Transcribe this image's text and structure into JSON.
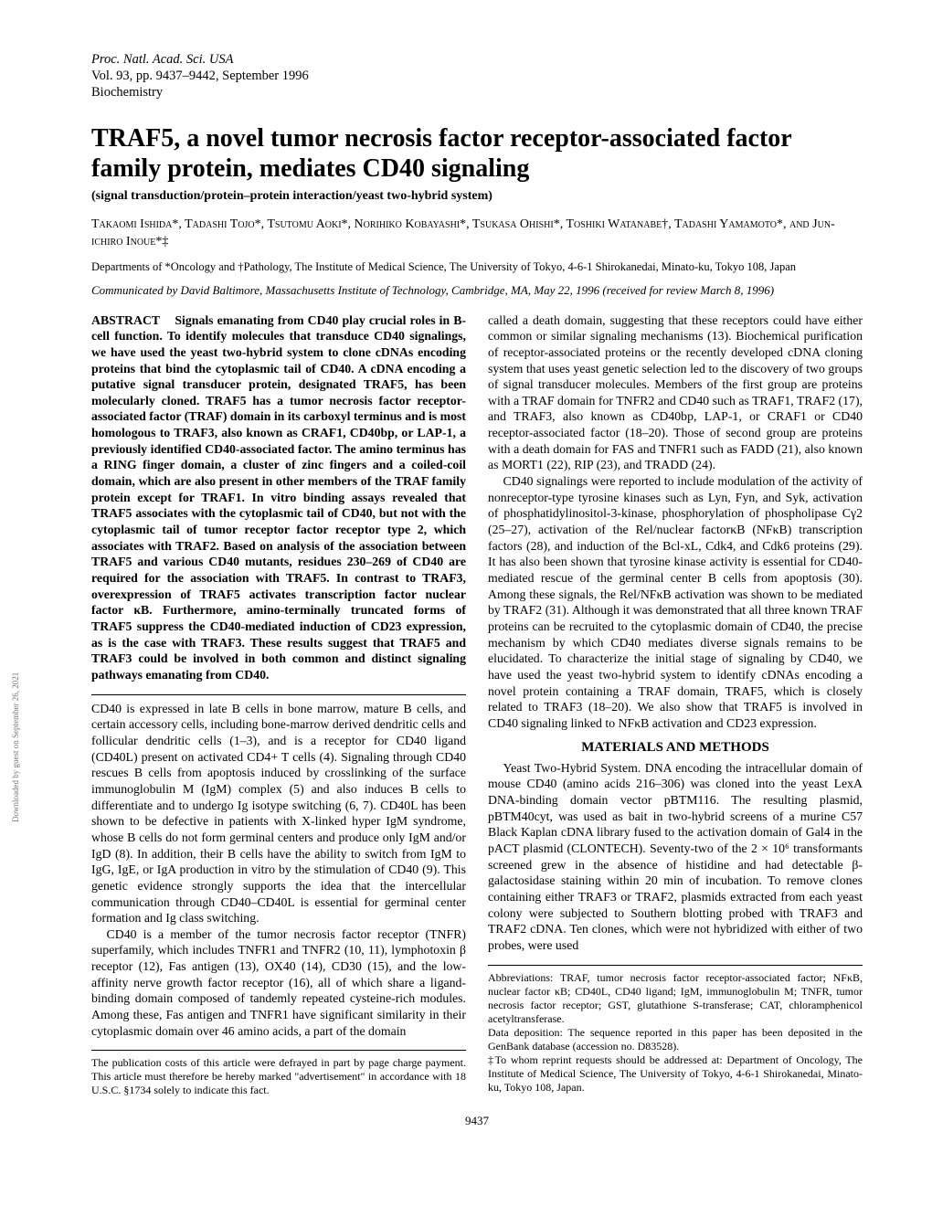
{
  "header": {
    "line1": "Proc. Natl. Acad. Sci. USA",
    "line2": "Vol. 93, pp. 9437–9442, September 1996",
    "line3": "Biochemistry"
  },
  "title": "TRAF5, a novel tumor necrosis factor receptor-associated factor family protein, mediates CD40 signaling",
  "subtitle": "(signal transduction/protein–protein interaction/yeast two-hybrid system)",
  "authors": "Takaomi Ishida*, Tadashi Tojo*, Tsutomu Aoki*, Norihiko Kobayashi*, Tsukasa Ohishi*, Toshiki Watanabe†, Tadashi Yamamoto*, and Jun-ichiro Inoue*‡",
  "affiliations": "Departments of *Oncology and †Pathology, The Institute of Medical Science, The University of Tokyo, 4-6-1 Shirokanedai, Minato-ku, Tokyo 108, Japan",
  "communicated": "Communicated by David Baltimore, Massachusetts Institute of Technology, Cambridge, MA, May 22, 1996 (received for review March 8, 1996)",
  "abstract_label": "ABSTRACT",
  "abstract": "Signals emanating from CD40 play crucial roles in B-cell function. To identify molecules that transduce CD40 signalings, we have used the yeast two-hybrid system to clone cDNAs encoding proteins that bind the cytoplasmic tail of CD40. A cDNA encoding a putative signal transducer protein, designated TRAF5, has been molecularly cloned. TRAF5 has a tumor necrosis factor receptor-associated factor (TRAF) domain in its carboxyl terminus and is most homologous to TRAF3, also known as CRAF1, CD40bp, or LAP-1, a previously identified CD40-associated factor. The amino terminus has a RING finger domain, a cluster of zinc fingers and a coiled-coil domain, which are also present in other members of the TRAF family protein except for TRAF1. In vitro binding assays revealed that TRAF5 associates with the cytoplasmic tail of CD40, but not with the cytoplasmic tail of tumor receptor factor receptor type 2, which associates with TRAF2. Based on analysis of the association between TRAF5 and various CD40 mutants, residues 230–269 of CD40 are required for the association with TRAF5. In contrast to TRAF3, overexpression of TRAF5 activates transcription factor nuclear factor κB. Furthermore, amino-terminally truncated forms of TRAF5 suppress the CD40-mediated induction of CD23 expression, as is the case with TRAF3. These results suggest that TRAF5 and TRAF3 could be involved in both common and distinct signaling pathways emanating from CD40.",
  "left": {
    "p1": "CD40 is expressed in late B cells in bone marrow, mature B cells, and certain accessory cells, including bone-marrow derived dendritic cells and follicular dendritic cells (1–3), and is a receptor for CD40 ligand (CD40L) present on activated CD4+ T cells (4). Signaling through CD40 rescues B cells from apoptosis induced by crosslinking of the surface immunoglobulin M (IgM) complex (5) and also induces B cells to differentiate and to undergo Ig isotype switching (6, 7). CD40L has been shown to be defective in patients with X-linked hyper IgM syndrome, whose B cells do not form germinal centers and produce only IgM and/or IgD (8). In addition, their B cells have the ability to switch from IgM to IgG, IgE, or IgA production in vitro by the stimulation of CD40 (9). This genetic evidence strongly supports the idea that the intercellular communication through CD40–CD40L is essential for germinal center formation and Ig class switching.",
    "p2": "CD40 is a member of the tumor necrosis factor receptor (TNFR) superfamily, which includes TNFR1 and TNFR2 (10, 11), lymphotoxin β receptor (12), Fas antigen (13), OX40 (14), CD30 (15), and the low-affinity nerve growth factor receptor (16), all of which share a ligand-binding domain composed of tandemly repeated cysteine-rich modules. Among these, Fas antigen and TNFR1 have significant similarity in their cytoplasmic domain over 46 amino acids, a part of the domain",
    "footnote": "The publication costs of this article were defrayed in part by page charge payment. This article must therefore be hereby marked \"advertisement\" in accordance with 18 U.S.C. §1734 solely to indicate this fact."
  },
  "right": {
    "p1": "called a death domain, suggesting that these receptors could have either common or similar signaling mechanisms (13). Biochemical purification of receptor-associated proteins or the recently developed cDNA cloning system that uses yeast genetic selection led to the discovery of two groups of signal transducer molecules. Members of the first group are proteins with a TRAF domain for TNFR2 and CD40 such as TRAF1, TRAF2 (17), and TRAF3, also known as CD40bp, LAP-1, or CRAF1 or CD40 receptor-associated factor (18–20). Those of second group are proteins with a death domain for FAS and TNFR1 such as FADD (21), also known as MORT1 (22), RIP (23), and TRADD (24).",
    "p2": "CD40 signalings were reported to include modulation of the activity of nonreceptor-type tyrosine kinases such as Lyn, Fyn, and Syk, activation of phosphatidylinositol-3-kinase, phosphorylation of phospholipase Cγ2 (25–27), activation of the Rel/nuclear factorκB (NFκB) transcription factors (28), and induction of the Bcl-xL, Cdk4, and Cdk6 proteins (29). It has also been shown that tyrosine kinase activity is essential for CD40-mediated rescue of the germinal center B cells from apoptosis (30). Among these signals, the Rel/NFκB activation was shown to be mediated by TRAF2 (31). Although it was demonstrated that all three known TRAF proteins can be recruited to the cytoplasmic domain of CD40, the precise mechanism by which CD40 mediates diverse signals remains to be elucidated. To characterize the initial stage of signaling by CD40, we have used the yeast two-hybrid system to identify cDNAs encoding a novel protein containing a TRAF domain, TRAF5, which is closely related to TRAF3 (18–20). We also show that TRAF5 is involved in CD40 signaling linked to NFκB activation and CD23 expression.",
    "methods_head": "MATERIALS AND METHODS",
    "p3": "Yeast Two-Hybrid System. DNA encoding the intracellular domain of mouse CD40 (amino acids 216–306) was cloned into the yeast LexA DNA-binding domain vector pBTM116. The resulting plasmid, pBTM40cyt, was used as bait in two-hybrid screens of a murine C57 Black Kaplan cDNA library fused to the activation domain of Gal4 in the pACT plasmid (CLONTECH). Seventy-two of the 2 × 10⁶ transformants screened grew in the absence of histidine and had detectable β-galactosidase staining within 20 min of incubation. To remove clones containing either TRAF3 or TRAF2, plasmids extracted from each yeast colony were subjected to Southern blotting probed with TRAF3 and TRAF2 cDNA. Ten clones, which were not hybridized with either of two probes, were used",
    "footnote1": "Abbreviations: TRAF, tumor necrosis factor receptor-associated factor; NFκB, nuclear factor κB; CD40L, CD40 ligand; IgM, immunoglobulin M; TNFR, tumor necrosis factor receptor; GST, glutathione S-transferase; CAT, chloramphenicol acetyltransferase.",
    "footnote2": "Data deposition: The sequence reported in this paper has been deposited in the GenBank database (accession no. D83528).",
    "footnote3": "‡To whom reprint requests should be addressed at: Department of Oncology, The Institute of Medical Science, The University of Tokyo, 4-6-1 Shirokanedai, Minato-ku, Tokyo 108, Japan."
  },
  "pagenum": "9437",
  "sidenote": "Downloaded by guest on September 26, 2021"
}
